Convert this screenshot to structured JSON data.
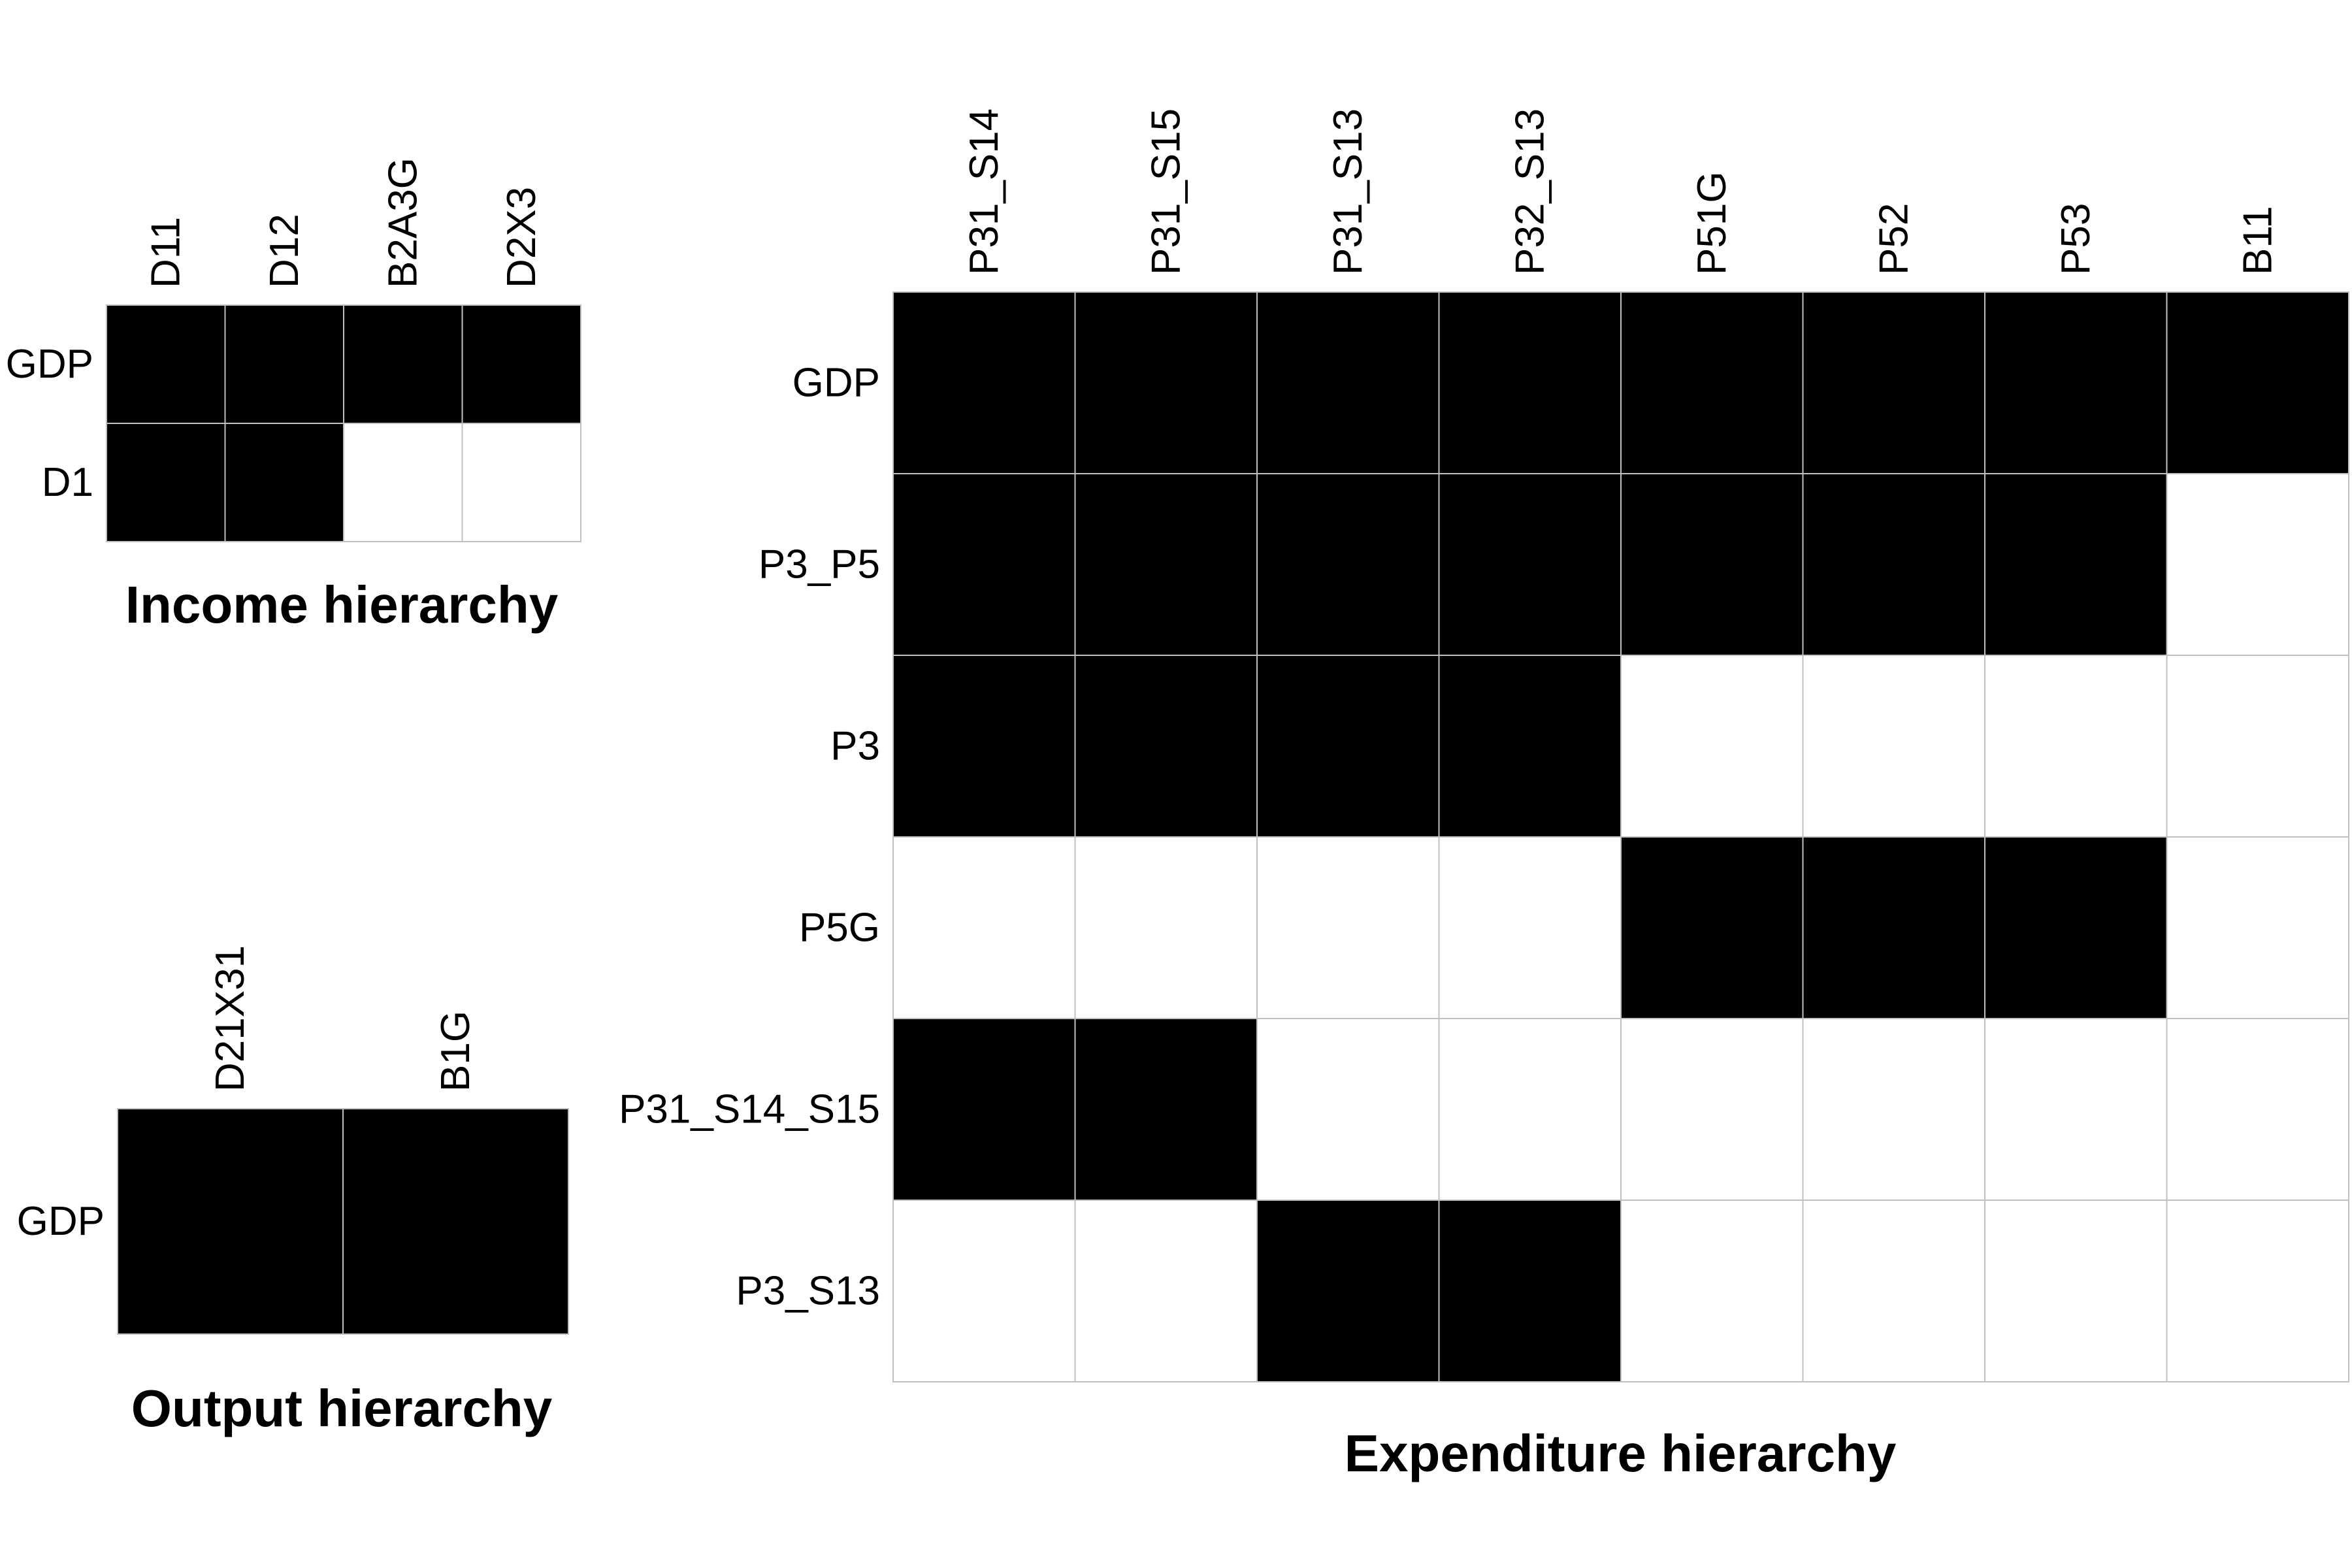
{
  "chart_data": [
    {
      "type": "heatmap",
      "title": "Income hierarchy",
      "columns": [
        "D11",
        "D12",
        "B2A3G",
        "D2X3"
      ],
      "rows": [
        "GDP",
        "D1"
      ],
      "values": [
        [
          1,
          1,
          1,
          1
        ],
        [
          1,
          1,
          0,
          0
        ]
      ],
      "colors": {
        "filled": "#000000",
        "empty": "#ffffff",
        "grid": "#c0c0c0"
      }
    },
    {
      "type": "heatmap",
      "title": "Output hierarchy",
      "columns": [
        "D21X31",
        "B1G"
      ],
      "rows": [
        "GDP"
      ],
      "values": [
        [
          1,
          1
        ]
      ],
      "colors": {
        "filled": "#000000",
        "empty": "#ffffff",
        "grid": "#c0c0c0"
      }
    },
    {
      "type": "heatmap",
      "title": "Expenditure hierarchy",
      "columns": [
        "P31_S14",
        "P31_S15",
        "P31_S13",
        "P32_S13",
        "P51G",
        "P52",
        "P53",
        "B11"
      ],
      "rows": [
        "GDP",
        "P3_P5",
        "P3",
        "P5G",
        "P31_S14_S15",
        "P3_S13"
      ],
      "values": [
        [
          1,
          1,
          1,
          1,
          1,
          1,
          1,
          1
        ],
        [
          1,
          1,
          1,
          1,
          1,
          1,
          1,
          0
        ],
        [
          1,
          1,
          1,
          1,
          0,
          0,
          0,
          0
        ],
        [
          0,
          0,
          0,
          0,
          1,
          1,
          1,
          0
        ],
        [
          1,
          1,
          0,
          0,
          0,
          0,
          0,
          0
        ],
        [
          0,
          0,
          1,
          1,
          0,
          0,
          0,
          0
        ]
      ],
      "colors": {
        "filled": "#000000",
        "empty": "#ffffff",
        "grid": "#c0c0c0"
      }
    }
  ]
}
